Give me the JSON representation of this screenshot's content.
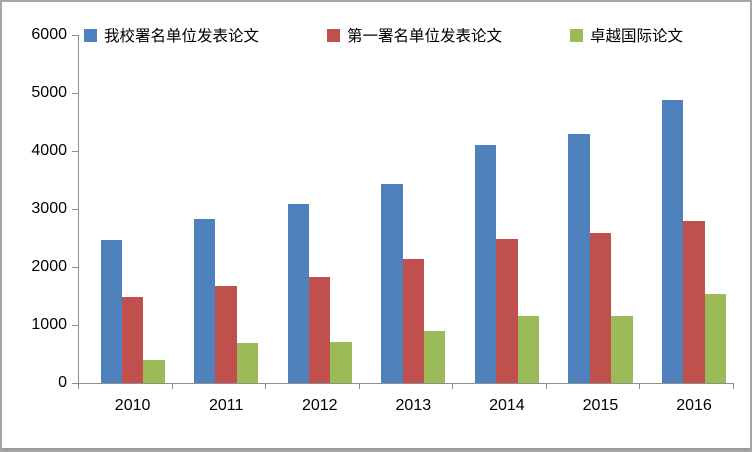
{
  "chart_data": {
    "type": "bar",
    "title": "",
    "categories": [
      "2010",
      "2011",
      "2012",
      "2013",
      "2014",
      "2015",
      "2016"
    ],
    "series": [
      {
        "name": "我校署名单位发表论文",
        "color": "#4F81BD",
        "values": [
          2460,
          2820,
          3090,
          3430,
          4110,
          4290,
          4880
        ]
      },
      {
        "name": "第一署名单位发表论文",
        "color": "#C0504D",
        "values": [
          1490,
          1670,
          1820,
          2130,
          2480,
          2580,
          2790
        ]
      },
      {
        "name": "卓越国际论文",
        "color": "#9BBB59",
        "values": [
          400,
          695,
          700,
          895,
          1150,
          1150,
          1530
        ]
      }
    ],
    "xlabel": "",
    "ylabel": "",
    "y_axis": {
      "min": 0,
      "max": 6000,
      "tick_interval": 1000,
      "tick_labels": [
        "0",
        "1000",
        "2000",
        "3000",
        "4000",
        "5000",
        "6000"
      ]
    },
    "legend_position": "top",
    "grid": false
  },
  "colors": {
    "background": "#FFFFFF",
    "border": "#A6A6A6",
    "axis": "#8E8E8E",
    "text": "#000000",
    "series_blue": "#4F81BD",
    "series_red": "#C0504D",
    "series_green": "#9BBB59"
  }
}
